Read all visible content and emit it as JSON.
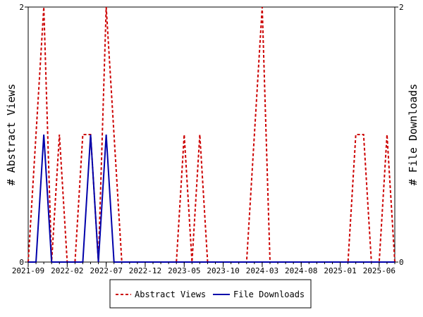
{
  "chart_data": {
    "type": "line",
    "ylabel_left": "# Abstract Views",
    "ylabel_right": "# File Downloads",
    "ylim": [
      0,
      2
    ],
    "y_ticks_left": [
      "0",
      "2"
    ],
    "y_ticks_right": [
      "0",
      "2"
    ],
    "x_tick_labels": [
      "2021-09",
      "2022-02",
      "2022-07",
      "2022-12",
      "2023-05",
      "2023-10",
      "2024-03",
      "2024-08",
      "2025-01",
      "2025-06"
    ],
    "x_months": [
      "2021-09",
      "2021-10",
      "2021-11",
      "2021-12",
      "2022-01",
      "2022-02",
      "2022-03",
      "2022-04",
      "2022-05",
      "2022-06",
      "2022-07",
      "2022-08",
      "2022-09",
      "2022-10",
      "2022-11",
      "2022-12",
      "2023-01",
      "2023-02",
      "2023-03",
      "2023-04",
      "2023-05",
      "2023-06",
      "2023-07",
      "2023-08",
      "2023-09",
      "2023-10",
      "2023-11",
      "2023-12",
      "2024-01",
      "2024-02",
      "2024-03",
      "2024-04",
      "2024-05",
      "2024-06",
      "2024-07",
      "2024-08",
      "2024-09",
      "2024-10",
      "2024-11",
      "2024-12",
      "2025-01",
      "2025-02",
      "2025-03",
      "2025-04",
      "2025-05",
      "2025-06",
      "2025-07",
      "2025-08"
    ],
    "legend_position": "bottom",
    "series": [
      {
        "name": "Abstract Views",
        "color": "#cc0000",
        "style": "dashed",
        "axis": "left",
        "values": [
          0,
          1,
          2,
          0,
          1,
          0,
          0,
          1,
          1,
          0,
          2,
          1,
          0,
          0,
          0,
          0,
          0,
          0,
          0,
          0,
          1,
          0,
          1,
          0,
          0,
          0,
          0,
          0,
          0,
          1,
          2,
          0,
          0,
          0,
          0,
          0,
          0,
          0,
          0,
          0,
          0,
          0,
          1,
          1,
          0,
          0,
          1,
          0
        ]
      },
      {
        "name": "File Downloads",
        "color": "#0000aa",
        "style": "solid",
        "axis": "right",
        "values": [
          0,
          0,
          1,
          0,
          0,
          0,
          0,
          0,
          1,
          0,
          1,
          0,
          0,
          0,
          0,
          0,
          0,
          0,
          0,
          0,
          0,
          0,
          0,
          0,
          0,
          0,
          0,
          0,
          0,
          0,
          0,
          0,
          0,
          0,
          0,
          0,
          0,
          0,
          0,
          0,
          0,
          0,
          0,
          0,
          0,
          0,
          0,
          0
        ]
      }
    ]
  }
}
